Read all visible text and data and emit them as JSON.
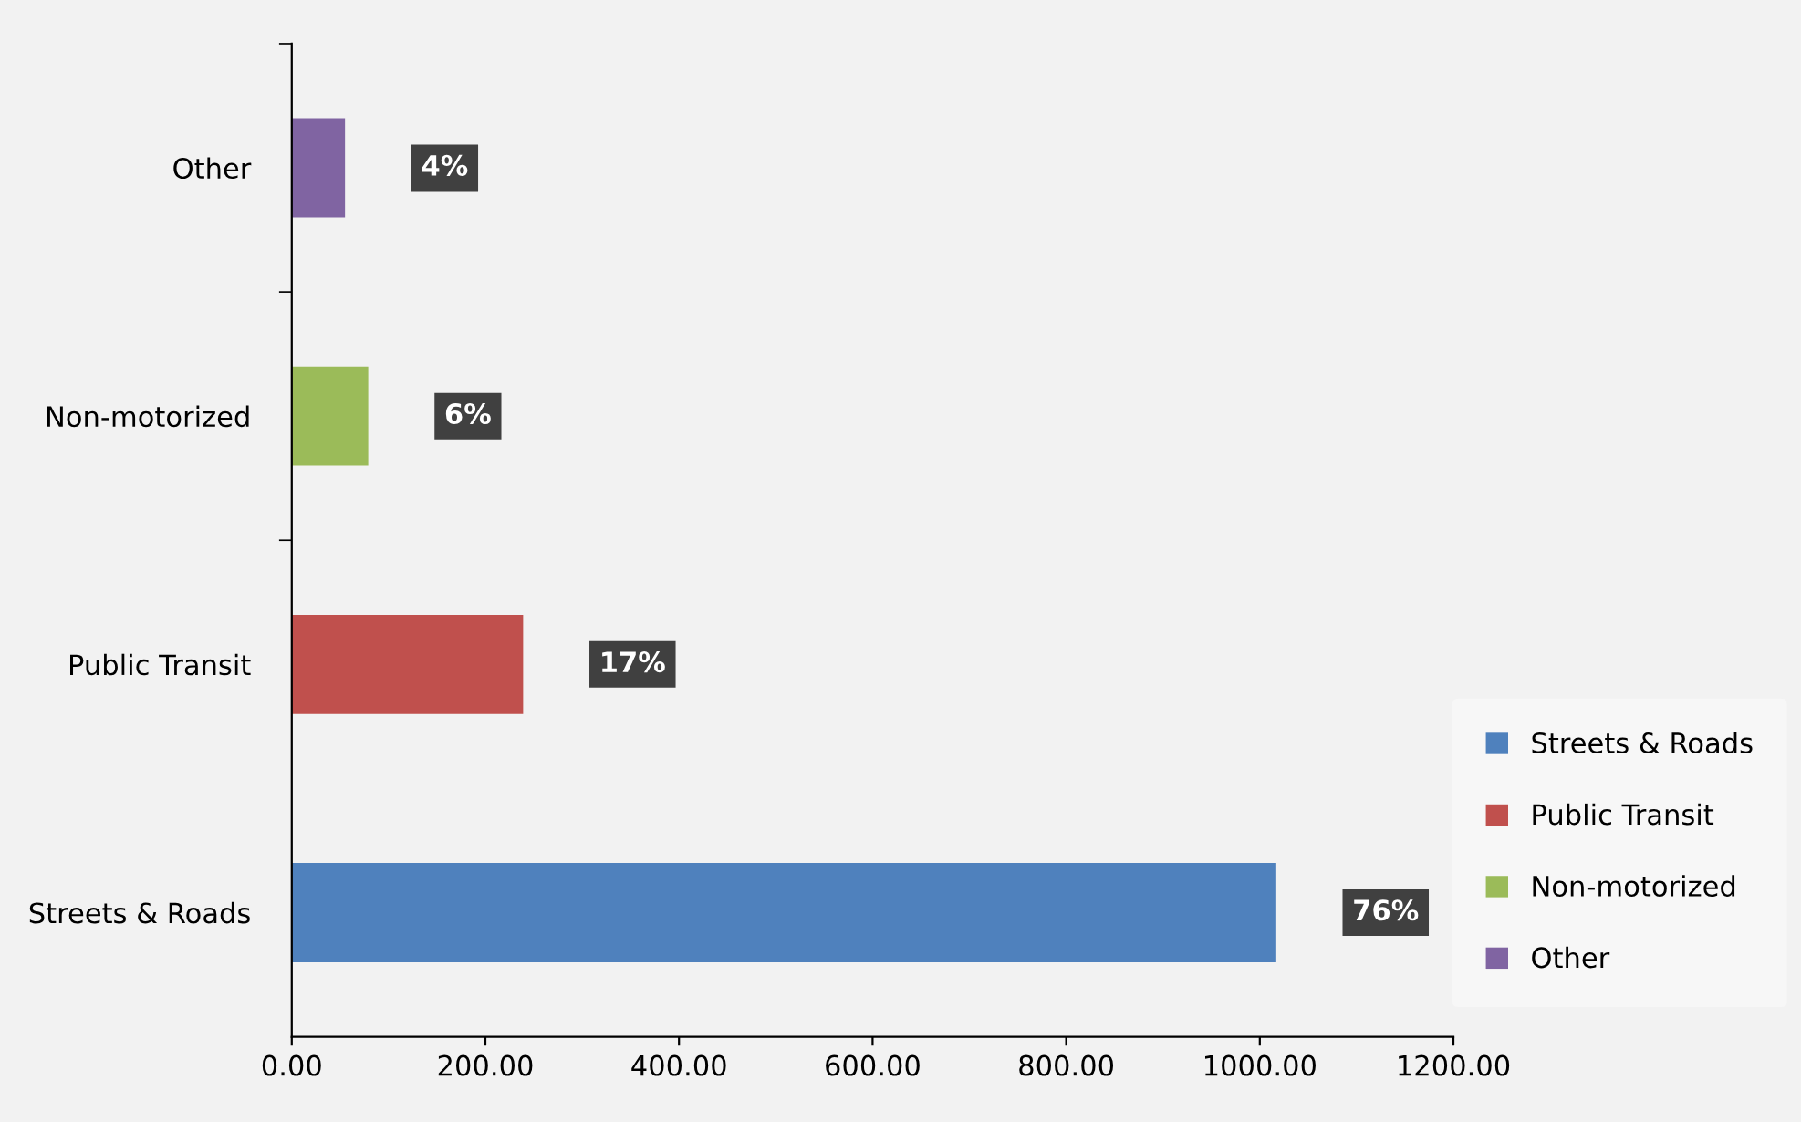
{
  "chart_data": {
    "type": "bar",
    "orientation": "horizontal",
    "categories": [
      "Other",
      "Non-motorized",
      "Public Transit",
      "Streets & Roads"
    ],
    "series": [
      {
        "name": "Streets & Roads",
        "color": "#4f81bd",
        "values": [
          null,
          null,
          null,
          1017
        ]
      },
      {
        "name": "Public Transit",
        "color": "#c0504d",
        "values": [
          null,
          null,
          239,
          null
        ]
      },
      {
        "name": "Non-motorized",
        "color": "#9bbb59",
        "values": [
          null,
          79,
          null,
          null
        ]
      },
      {
        "name": "Other",
        "color": "#8064a2",
        "values": [
          55,
          null,
          null,
          null
        ]
      }
    ],
    "annotations": [
      {
        "text": "4%",
        "x": 55,
        "y": "Other"
      },
      {
        "text": "6%",
        "x": 79,
        "y": "Non-motorized"
      },
      {
        "text": "17%",
        "x": 239,
        "y": "Public Transit"
      },
      {
        "text": "76%",
        "x": 1017,
        "y": "Streets & Roads"
      }
    ],
    "xlim": [
      0,
      1200
    ],
    "xticks": [
      {
        "value": 0,
        "label": "0.00"
      },
      {
        "value": 200,
        "label": "200.00"
      },
      {
        "value": 400,
        "label": "400.00"
      },
      {
        "value": 600,
        "label": "600.00"
      },
      {
        "value": 800,
        "label": "800.00"
      },
      {
        "value": 1000,
        "label": "1000.00"
      },
      {
        "value": 1200,
        "label": "1200.00"
      }
    ],
    "grid": false,
    "legend": "bottom right"
  }
}
